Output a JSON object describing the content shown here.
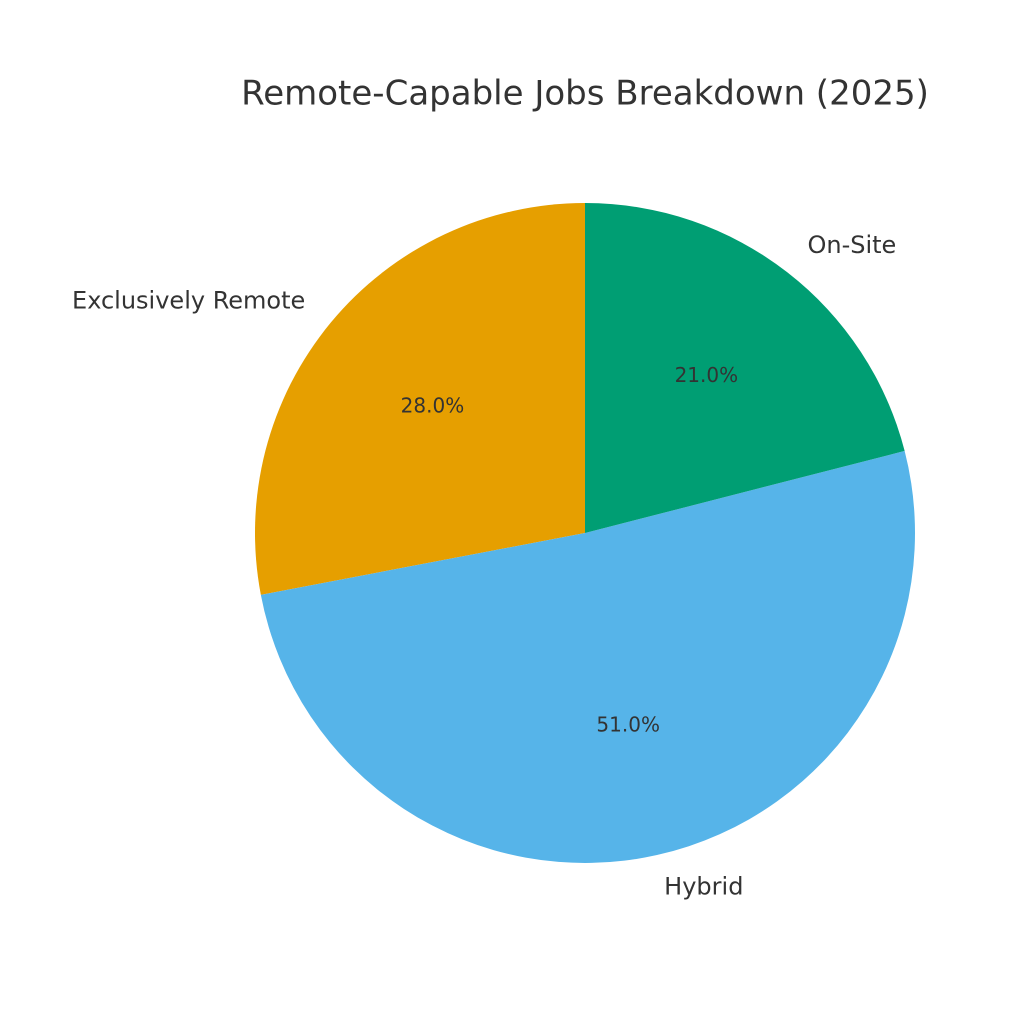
{
  "chart_data": {
    "type": "pie",
    "title": "Remote-Capable Jobs Breakdown (2025)",
    "categories": [
      "Exclusively Remote",
      "Hybrid",
      "On-Site"
    ],
    "values": [
      28,
      51,
      21
    ],
    "value_labels": [
      "28.0%",
      "51.0%",
      "21.0%"
    ],
    "colors": [
      "#E69F00",
      "#56B4E9",
      "#009E73"
    ]
  }
}
